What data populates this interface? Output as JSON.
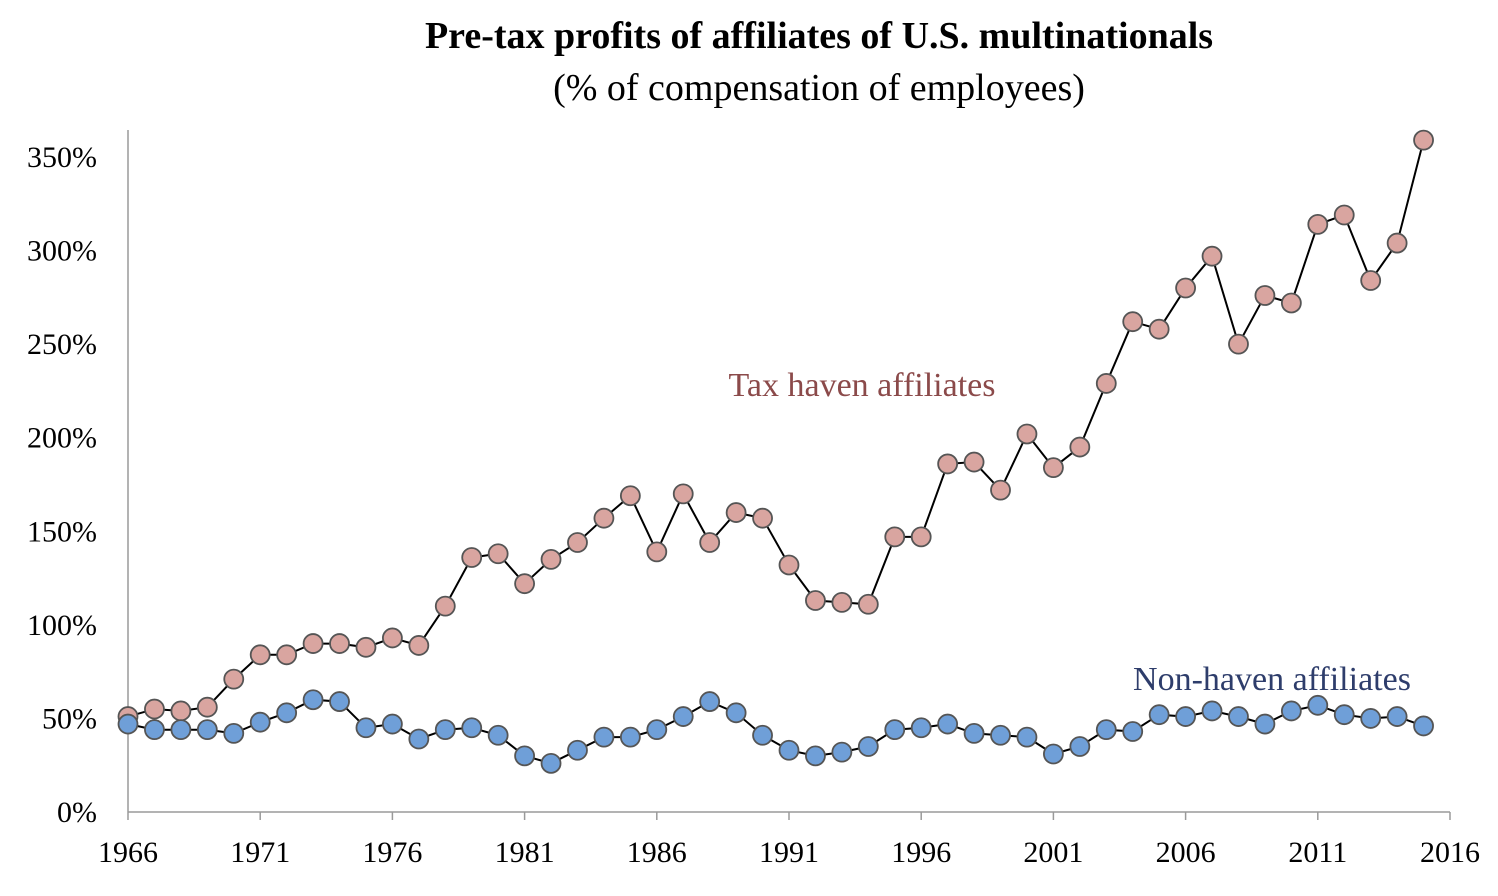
{
  "chart_data": {
    "type": "line",
    "title": "Pre-tax profits of affiliates of U.S. multinationals",
    "subtitle": "(% of compensation of employees)",
    "xlabel": "",
    "ylabel": "",
    "xlim": [
      1966,
      2016
    ],
    "ylim": [
      0,
      360
    ],
    "x_ticks": [
      "1966",
      "1971",
      "1976",
      "1981",
      "1986",
      "1991",
      "1996",
      "2001",
      "2006",
      "2011",
      "2016"
    ],
    "y_ticks": [
      "0%",
      "50%",
      "100%",
      "150%",
      "200%",
      "250%",
      "300%",
      "350%"
    ],
    "grid": false,
    "x": [
      1966,
      1967,
      1968,
      1969,
      1970,
      1971,
      1972,
      1973,
      1974,
      1975,
      1976,
      1977,
      1978,
      1979,
      1980,
      1981,
      1982,
      1983,
      1984,
      1985,
      1986,
      1987,
      1988,
      1989,
      1990,
      1991,
      1992,
      1993,
      1994,
      1995,
      1996,
      1997,
      1998,
      1999,
      2000,
      2001,
      2002,
      2003,
      2004,
      2005,
      2006,
      2007,
      2008,
      2009,
      2010,
      2011,
      2012,
      2013,
      2014,
      2015
    ],
    "series": [
      {
        "name": "Tax haven affiliates",
        "color": "#d9a5a0",
        "label_color": "#8b4a4a",
        "values": [
          51,
          55,
          54,
          56,
          71,
          84,
          84,
          90,
          90,
          88,
          93,
          89,
          110,
          136,
          138,
          122,
          135,
          144,
          157,
          169,
          139,
          170,
          144,
          160,
          157,
          132,
          113,
          112,
          111,
          147,
          147,
          186,
          187,
          172,
          202,
          184,
          195,
          229,
          262,
          258,
          280,
          297,
          250,
          276,
          272,
          314,
          319,
          284,
          304,
          359
        ]
      },
      {
        "name": "Non-haven affiliates",
        "color": "#6f9fd8",
        "label_color": "#2e3d6b",
        "values": [
          47,
          44,
          44,
          44,
          42,
          48,
          53,
          60,
          59,
          45,
          47,
          39,
          44,
          45,
          41,
          30,
          26,
          33,
          40,
          40,
          44,
          51,
          59,
          53,
          41,
          33,
          30,
          32,
          35,
          44,
          45,
          47,
          42,
          41,
          40,
          31,
          35,
          44,
          43,
          52,
          51,
          54,
          51,
          47,
          54,
          57,
          52,
          50,
          51,
          46
        ]
      }
    ]
  }
}
